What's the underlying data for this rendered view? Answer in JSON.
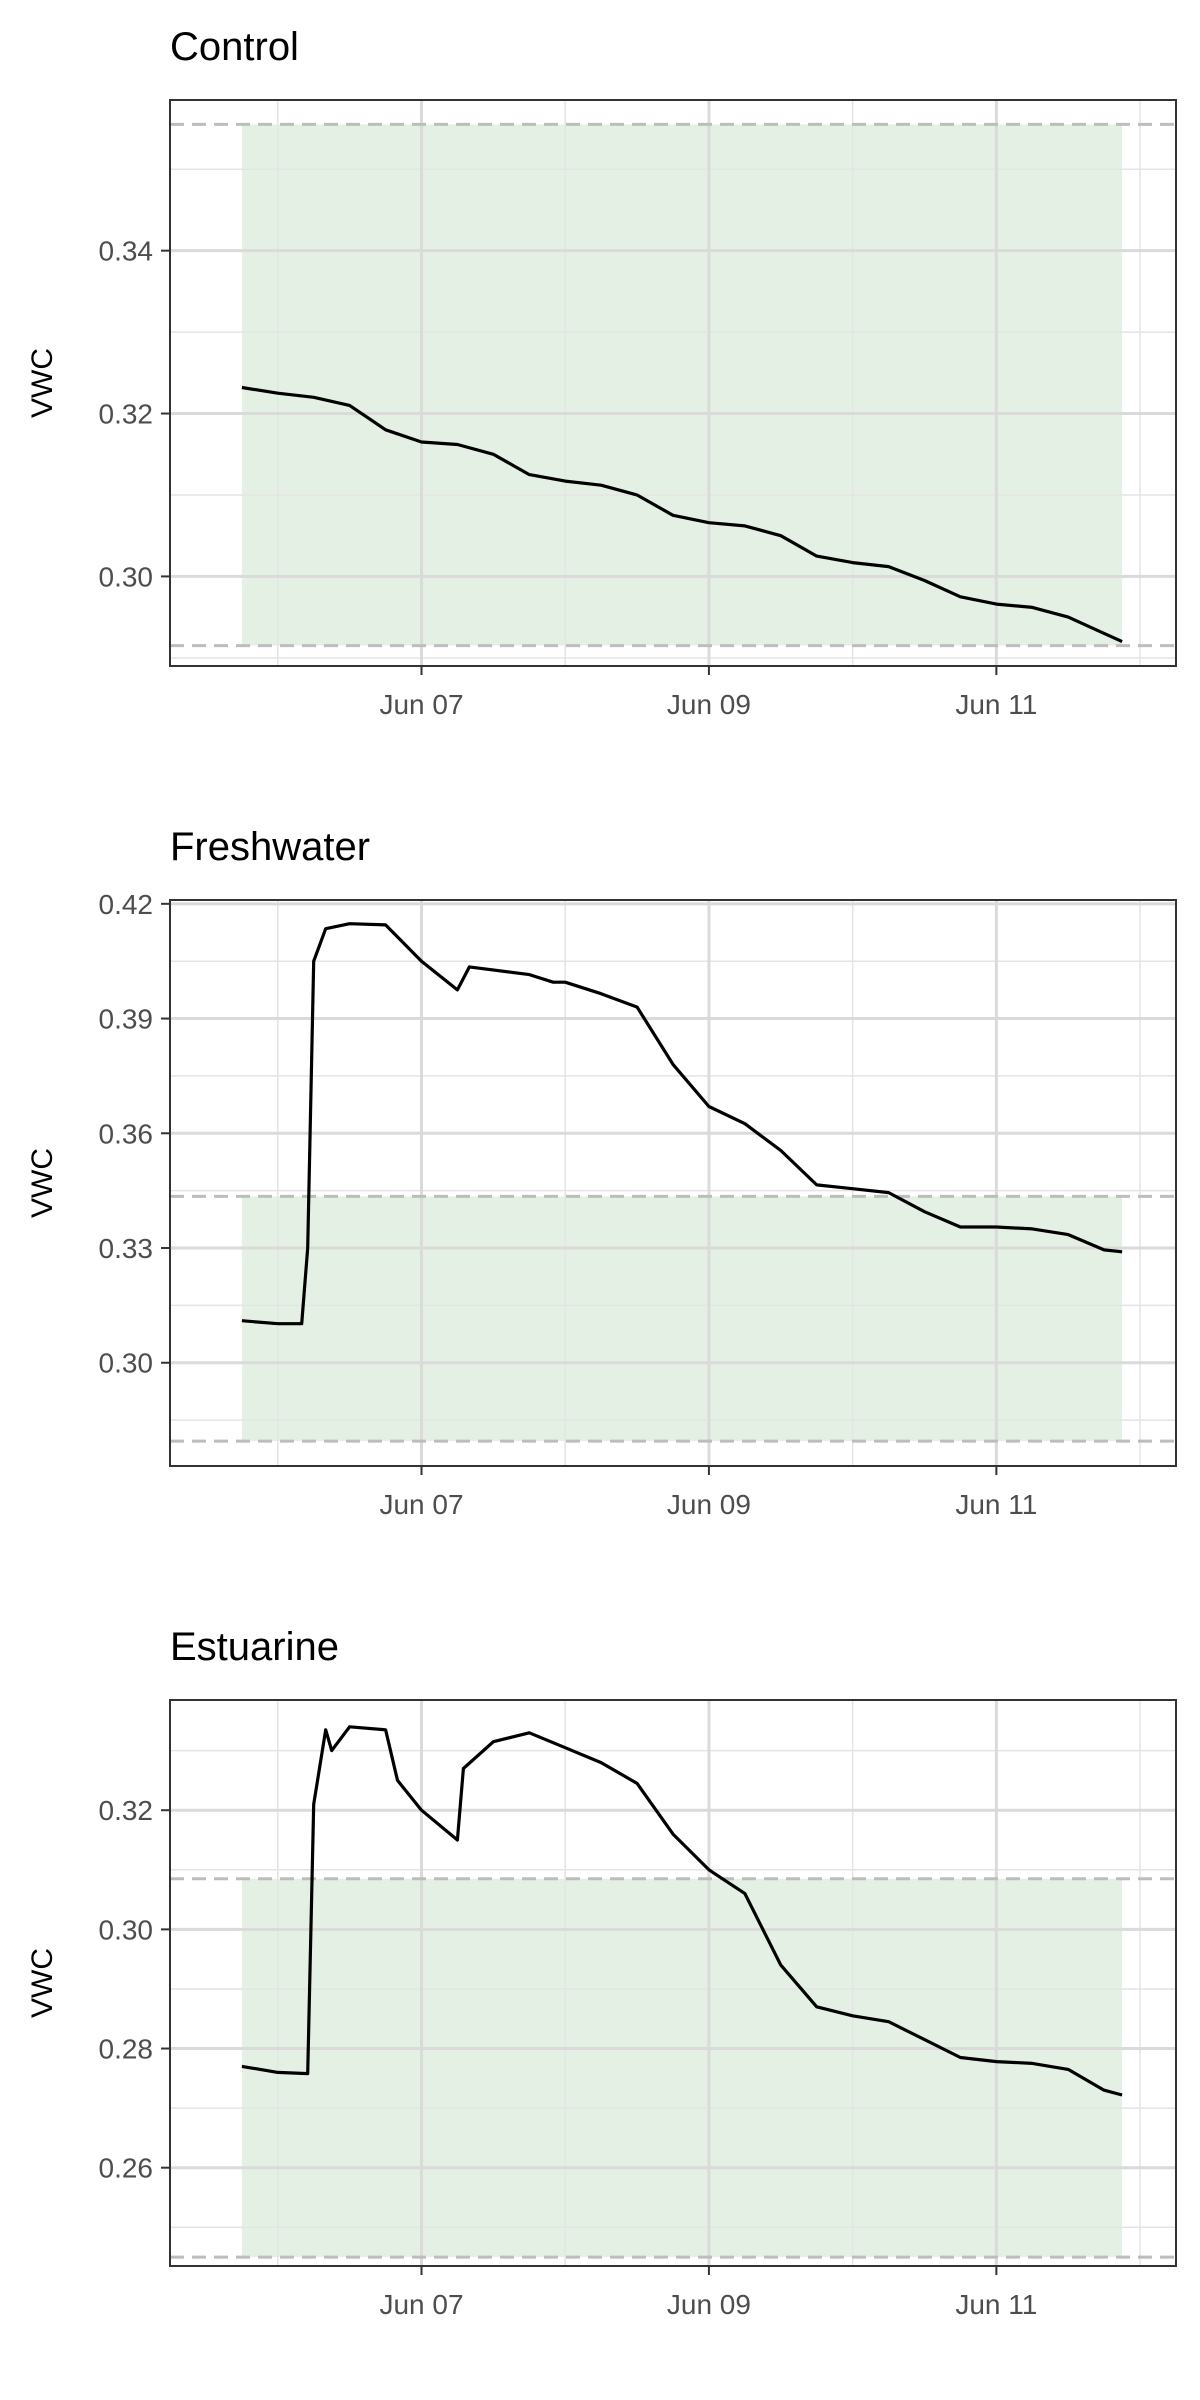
{
  "chart_data": [
    {
      "type": "line",
      "title": "Control",
      "xlabel": "",
      "ylabel": "VWC",
      "x_ticks": [
        "Jun 07",
        "Jun 09",
        "Jun 11"
      ],
      "y_ticks": [
        "0.30",
        "0.32",
        "0.34"
      ],
      "ylim": [
        0.289,
        0.3585
      ],
      "shaded_band": {
        "ymin": 0.2915,
        "ymax": 0.3555,
        "color": "#e5f0e5"
      },
      "reference_lines": [
        0.2915,
        0.3555
      ],
      "grid": true,
      "series": [
        {
          "color": "#000000",
          "x": [
            "Jun 05 18:00",
            "Jun 06 00:00",
            "Jun 06 06:00",
            "Jun 06 12:00",
            "Jun 06 18:00",
            "Jun 07 00:00",
            "Jun 07 06:00",
            "Jun 07 12:00",
            "Jun 07 18:00",
            "Jun 08 00:00",
            "Jun 08 06:00",
            "Jun 08 12:00",
            "Jun 08 18:00",
            "Jun 09 00:00",
            "Jun 09 06:00",
            "Jun 09 12:00",
            "Jun 09 18:00",
            "Jun 10 00:00",
            "Jun 10 06:00",
            "Jun 10 12:00",
            "Jun 10 18:00",
            "Jun 11 00:00",
            "Jun 11 06:00",
            "Jun 11 12:00",
            "Jun 11 18:00",
            "Jun 11 21:00"
          ],
          "y": [
            0.3232,
            0.3225,
            0.322,
            0.321,
            0.318,
            0.3165,
            0.3162,
            0.315,
            0.3125,
            0.3117,
            0.3112,
            0.31,
            0.3075,
            0.3066,
            0.3062,
            0.305,
            0.3025,
            0.3017,
            0.3012,
            0.2995,
            0.2975,
            0.2966,
            0.2962,
            0.295,
            0.293,
            0.292
          ]
        }
      ]
    },
    {
      "type": "line",
      "title": "Freshwater",
      "xlabel": "",
      "ylabel": "VWC",
      "x_ticks": [
        "Jun 07",
        "Jun 09",
        "Jun 11"
      ],
      "y_ticks": [
        "0.30",
        "0.33",
        "0.36",
        "0.39",
        "0.42"
      ],
      "ylim": [
        0.273,
        0.421
      ],
      "shaded_band": {
        "ymin": 0.2795,
        "ymax": 0.3435,
        "color": "#e5f0e5"
      },
      "reference_lines": [
        0.2795,
        0.3435
      ],
      "grid": true,
      "series": [
        {
          "color": "#000000",
          "x": [
            "Jun 05 18:00",
            "Jun 06 00:00",
            "Jun 06 04:00",
            "Jun 06 05:00",
            "Jun 06 06:00",
            "Jun 06 08:00",
            "Jun 06 12:00",
            "Jun 06 18:00",
            "Jun 07 00:00",
            "Jun 07 06:00",
            "Jun 07 08:00",
            "Jun 07 18:00",
            "Jun 07 22:00",
            "Jun 08 00:00",
            "Jun 08 06:00",
            "Jun 08 12:00",
            "Jun 08 18:00",
            "Jun 09 00:00",
            "Jun 09 06:00",
            "Jun 09 12:00",
            "Jun 09 18:00",
            "Jun 10 00:00",
            "Jun 10 06:00",
            "Jun 10 12:00",
            "Jun 10 18:00",
            "Jun 11 00:00",
            "Jun 11 06:00",
            "Jun 11 12:00",
            "Jun 11 18:00",
            "Jun 11 21:00"
          ],
          "y": [
            0.311,
            0.3102,
            0.3102,
            0.33,
            0.405,
            0.4135,
            0.4148,
            0.4145,
            0.405,
            0.3975,
            0.4035,
            0.4015,
            0.3995,
            0.3995,
            0.3965,
            0.393,
            0.378,
            0.367,
            0.3625,
            0.3555,
            0.3465,
            0.3455,
            0.3445,
            0.3395,
            0.3355,
            0.3355,
            0.335,
            0.3335,
            0.3295,
            0.329
          ]
        }
      ]
    },
    {
      "type": "line",
      "title": "Estuarine",
      "xlabel": "",
      "ylabel": "VWC",
      "x_ticks": [
        "Jun 07",
        "Jun 09",
        "Jun 11"
      ],
      "y_ticks": [
        "0.26",
        "0.28",
        "0.30",
        "0.32"
      ],
      "ylim": [
        0.2435,
        0.3385
      ],
      "shaded_band": {
        "ymin": 0.245,
        "ymax": 0.3085,
        "color": "#e5f0e5"
      },
      "reference_lines": [
        0.245,
        0.3085
      ],
      "grid": true,
      "series": [
        {
          "color": "#000000",
          "x": [
            "Jun 05 18:00",
            "Jun 06 00:00",
            "Jun 06 05:00",
            "Jun 06 06:00",
            "Jun 06 08:00",
            "Jun 06 09:00",
            "Jun 06 12:00",
            "Jun 06 18:00",
            "Jun 06 20:00",
            "Jun 07 00:00",
            "Jun 07 06:00",
            "Jun 07 07:00",
            "Jun 07 12:00",
            "Jun 07 18:00",
            "Jun 08 00:00",
            "Jun 08 06:00",
            "Jun 08 12:00",
            "Jun 08 18:00",
            "Jun 09 00:00",
            "Jun 09 06:00",
            "Jun 09 12:00",
            "Jun 09 18:00",
            "Jun 10 00:00",
            "Jun 10 06:00",
            "Jun 10 12:00",
            "Jun 10 18:00",
            "Jun 11 00:00",
            "Jun 11 06:00",
            "Jun 11 12:00",
            "Jun 11 18:00",
            "Jun 11 21:00"
          ],
          "y": [
            0.277,
            0.276,
            0.2758,
            0.321,
            0.3335,
            0.33,
            0.334,
            0.3335,
            0.325,
            0.32,
            0.315,
            0.327,
            0.3315,
            0.333,
            0.3305,
            0.328,
            0.3245,
            0.316,
            0.31,
            0.306,
            0.294,
            0.287,
            0.2855,
            0.2845,
            0.2815,
            0.2785,
            0.2778,
            0.2775,
            0.2765,
            0.273,
            0.2722
          ]
        }
      ]
    }
  ]
}
